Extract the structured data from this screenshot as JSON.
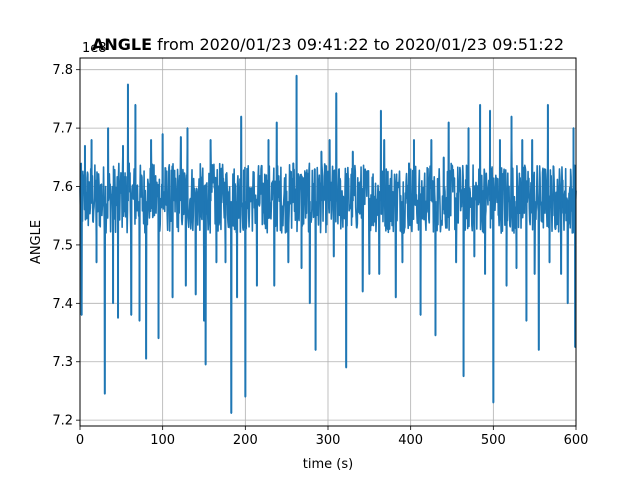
{
  "chart_data": {
    "type": "line",
    "title_main": "ANGLE",
    "title_rest": " from 2020/01/23 09:41:22 to 2020/01/23 09:51:22",
    "xlabel": "time (s)",
    "ylabel": "ANGLE",
    "offset_label": "1e8",
    "xlim": [
      0,
      600
    ],
    "ylim": [
      7.19,
      7.82
    ],
    "xticks": [
      0,
      100,
      200,
      300,
      400,
      500,
      600
    ],
    "yticks": [
      7.2,
      7.3,
      7.4,
      7.5,
      7.6,
      7.7,
      7.8
    ],
    "ytick_labels": [
      "7.2",
      "7.3",
      "7.4",
      "7.5",
      "7.6",
      "7.7",
      "7.8"
    ],
    "grid": true,
    "line_color": "#1f77b4",
    "series": [
      {
        "band_low": 7.52,
        "band_high": 7.64,
        "center": 7.575,
        "spikes": [
          {
            "x": 2,
            "y": 7.38
          },
          {
            "x": 6,
            "y": 7.67
          },
          {
            "x": 14,
            "y": 7.68
          },
          {
            "x": 20,
            "y": 7.47
          },
          {
            "x": 30,
            "y": 7.245
          },
          {
            "x": 34,
            "y": 7.7
          },
          {
            "x": 40,
            "y": 7.4
          },
          {
            "x": 46,
            "y": 7.375
          },
          {
            "x": 52,
            "y": 7.67
          },
          {
            "x": 58,
            "y": 7.775
          },
          {
            "x": 62,
            "y": 7.38
          },
          {
            "x": 67,
            "y": 7.74
          },
          {
            "x": 72,
            "y": 7.37
          },
          {
            "x": 80,
            "y": 7.305
          },
          {
            "x": 86,
            "y": 7.68
          },
          {
            "x": 95,
            "y": 7.34
          },
          {
            "x": 100,
            "y": 7.69
          },
          {
            "x": 112,
            "y": 7.41
          },
          {
            "x": 122,
            "y": 7.685
          },
          {
            "x": 128,
            "y": 7.43
          },
          {
            "x": 130,
            "y": 7.7
          },
          {
            "x": 140,
            "y": 7.415
          },
          {
            "x": 150,
            "y": 7.37
          },
          {
            "x": 152,
            "y": 7.295
          },
          {
            "x": 158,
            "y": 7.68
          },
          {
            "x": 165,
            "y": 7.47
          },
          {
            "x": 176,
            "y": 7.47
          },
          {
            "x": 183,
            "y": 7.212
          },
          {
            "x": 190,
            "y": 7.41
          },
          {
            "x": 195,
            "y": 7.72
          },
          {
            "x": 200,
            "y": 7.24
          },
          {
            "x": 214,
            "y": 7.43
          },
          {
            "x": 228,
            "y": 7.68
          },
          {
            "x": 235,
            "y": 7.43
          },
          {
            "x": 238,
            "y": 7.71
          },
          {
            "x": 252,
            "y": 7.47
          },
          {
            "x": 258,
            "y": 7.64
          },
          {
            "x": 262,
            "y": 7.79
          },
          {
            "x": 268,
            "y": 7.46
          },
          {
            "x": 278,
            "y": 7.4
          },
          {
            "x": 284,
            "y": 7.63
          },
          {
            "x": 285,
            "y": 7.32
          },
          {
            "x": 292,
            "y": 7.66
          },
          {
            "x": 302,
            "y": 7.68
          },
          {
            "x": 307,
            "y": 7.48
          },
          {
            "x": 310,
            "y": 7.76
          },
          {
            "x": 322,
            "y": 7.29
          },
          {
            "x": 330,
            "y": 7.66
          },
          {
            "x": 342,
            "y": 7.42
          },
          {
            "x": 350,
            "y": 7.45
          },
          {
            "x": 362,
            "y": 7.45
          },
          {
            "x": 364,
            "y": 7.73
          },
          {
            "x": 368,
            "y": 7.68
          },
          {
            "x": 382,
            "y": 7.41
          },
          {
            "x": 390,
            "y": 7.47
          },
          {
            "x": 398,
            "y": 7.64
          },
          {
            "x": 404,
            "y": 7.68
          },
          {
            "x": 412,
            "y": 7.38
          },
          {
            "x": 425,
            "y": 7.68
          },
          {
            "x": 430,
            "y": 7.345
          },
          {
            "x": 440,
            "y": 7.65
          },
          {
            "x": 446,
            "y": 7.71
          },
          {
            "x": 455,
            "y": 7.47
          },
          {
            "x": 464,
            "y": 7.275
          },
          {
            "x": 470,
            "y": 7.7
          },
          {
            "x": 477,
            "y": 7.48
          },
          {
            "x": 484,
            "y": 7.74
          },
          {
            "x": 490,
            "y": 7.45
          },
          {
            "x": 496,
            "y": 7.73
          },
          {
            "x": 500,
            "y": 7.23
          },
          {
            "x": 508,
            "y": 7.68
          },
          {
            "x": 516,
            "y": 7.43
          },
          {
            "x": 522,
            "y": 7.72
          },
          {
            "x": 528,
            "y": 7.46
          },
          {
            "x": 535,
            "y": 7.68
          },
          {
            "x": 540,
            "y": 7.37
          },
          {
            "x": 547,
            "y": 7.68
          },
          {
            "x": 550,
            "y": 7.45
          },
          {
            "x": 555,
            "y": 7.32
          },
          {
            "x": 566,
            "y": 7.74
          },
          {
            "x": 568,
            "y": 7.47
          },
          {
            "x": 576,
            "y": 7.59
          },
          {
            "x": 582,
            "y": 7.45
          },
          {
            "x": 590,
            "y": 7.4
          },
          {
            "x": 597,
            "y": 7.7
          },
          {
            "x": 599,
            "y": 7.325
          }
        ]
      }
    ]
  }
}
